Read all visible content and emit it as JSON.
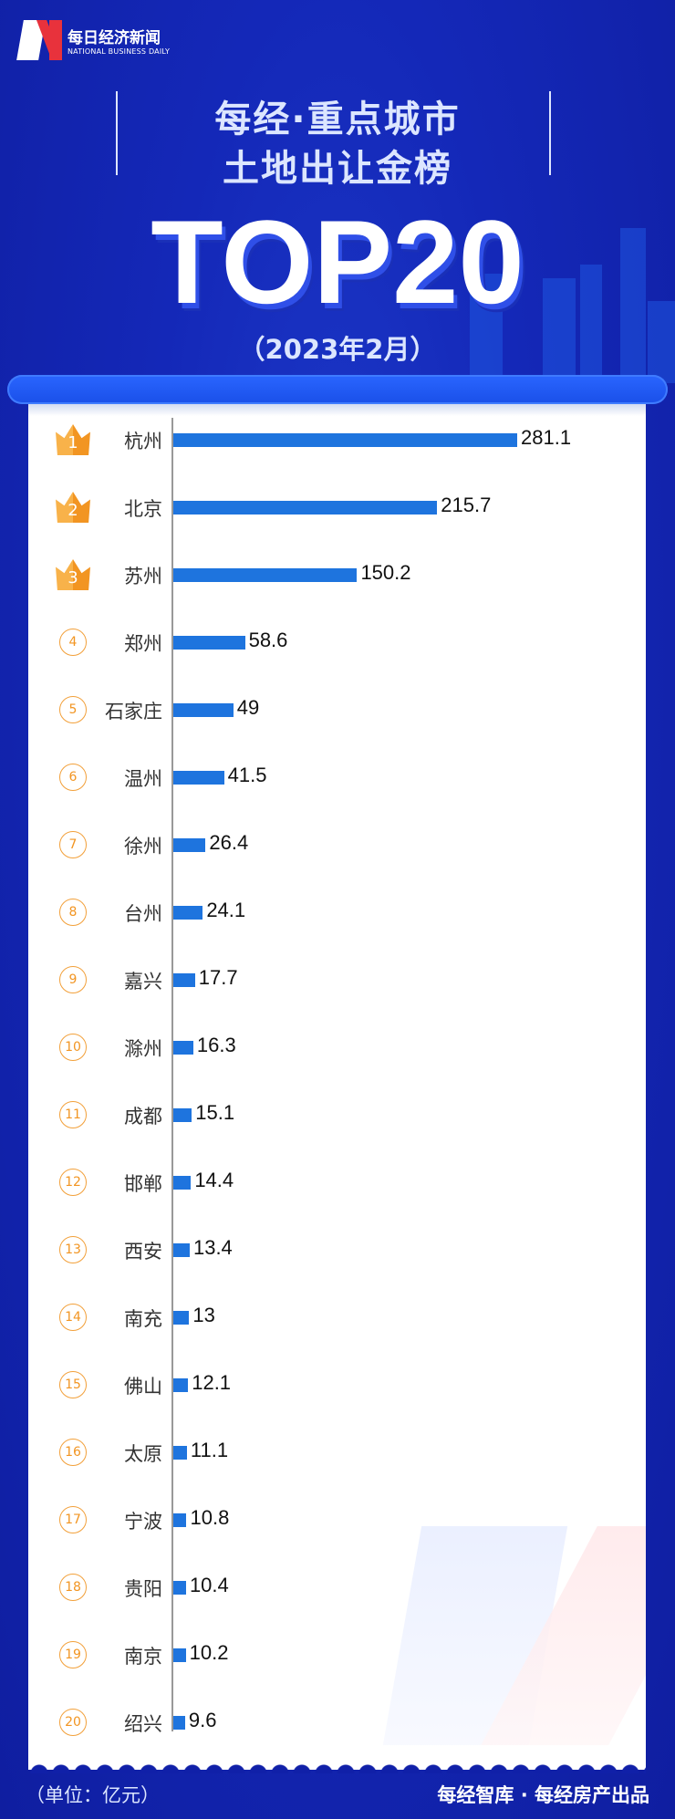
{
  "brand": {
    "name_cn": "每日经济新闻",
    "name_en": "NATIONAL BUSINESS DAILY",
    "colors": {
      "background": "#1020a8",
      "bar": "#1e74de",
      "medal": "#f29522",
      "logo_red": "#e8323c"
    }
  },
  "header": {
    "title_line1": "每经·重点城市",
    "title_line2": "土地出让金榜",
    "big": "TOP20",
    "date": "（2023年2月）"
  },
  "chart_data": {
    "type": "bar",
    "orientation": "horizontal",
    "categories": [
      "杭州",
      "北京",
      "苏州",
      "郑州",
      "石家庄",
      "温州",
      "徐州",
      "台州",
      "嘉兴",
      "滁州",
      "成都",
      "邯郸",
      "西安",
      "南充",
      "佛山",
      "太原",
      "宁波",
      "贵阳",
      "南京",
      "绍兴"
    ],
    "ranks": [
      "1",
      "2",
      "3",
      "4",
      "5",
      "6",
      "7",
      "8",
      "9",
      "10",
      "11",
      "12",
      "13",
      "14",
      "15",
      "16",
      "17",
      "18",
      "19",
      "20"
    ],
    "values": [
      281.1,
      215.7,
      150.2,
      58.6,
      49,
      41.5,
      26.4,
      24.1,
      17.7,
      16.3,
      15.1,
      14.4,
      13.4,
      13,
      12.1,
      11.1,
      10.8,
      10.4,
      10.2,
      9.6
    ],
    "labels": [
      "281.1",
      "215.7",
      "150.2",
      "58.6",
      "49",
      "41.5",
      "26.4",
      "24.1",
      "17.7",
      "16.3",
      "15.1",
      "14.4",
      "13.4",
      "13",
      "12.1",
      "11.1",
      "10.8",
      "10.4",
      "10.2",
      "9.6"
    ],
    "unit": "（单位：亿元）",
    "grid": false
  },
  "footer": {
    "unit": "（单位：亿元）",
    "credit": "每经智库 · 每经房产出品"
  }
}
